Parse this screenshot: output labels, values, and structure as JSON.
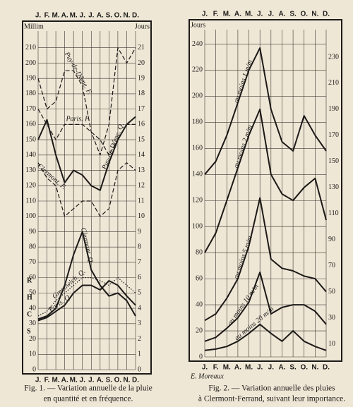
{
  "chart_data": [
    {
      "type": "line",
      "categories": [
        "J.",
        "F.",
        "M.",
        "A.",
        "M.",
        "J.",
        "J.",
        "A.",
        "S.",
        "O.",
        "N.",
        "D."
      ],
      "ylabel": "Millim",
      "y2label": "Jours",
      "ylim": [
        0,
        220
      ],
      "yticks": [
        0,
        10,
        20,
        30,
        40,
        50,
        60,
        70,
        80,
        90,
        100,
        110,
        120,
        130,
        140,
        150,
        160,
        170,
        180,
        190,
        200,
        210
      ],
      "y2lim": [
        0,
        22
      ],
      "y2ticks": [
        0,
        1,
        2,
        3,
        4,
        5,
        6,
        7,
        8,
        9,
        10,
        11,
        12,
        13,
        14,
        15,
        16,
        17,
        18,
        19,
        20,
        21
      ],
      "grid": true,
      "color": "#1c1a18",
      "series": [
        {
          "name": "Puy-de-Dôme. F.",
          "axis": "y2",
          "style": "dashed",
          "values": [
            19,
            17,
            17.5,
            19.5,
            19.5,
            18.5,
            15.5,
            14,
            16,
            21,
            20,
            21
          ]
        },
        {
          "name": "Paris. F.",
          "axis": "y2",
          "style": "dashed",
          "values": [
            17,
            16,
            15,
            16,
            16,
            16,
            15.5,
            15,
            14,
            15,
            16,
            16
          ]
        },
        {
          "name": "Clermont. F.",
          "axis": "y2",
          "style": "dashed",
          "values": [
            13.5,
            12.5,
            12,
            10,
            10.5,
            11,
            11,
            10,
            10.5,
            13,
            13.5,
            13
          ]
        },
        {
          "name": "Puy-de-Dôme. Q.",
          "style": "solid",
          "values": [
            150,
            163,
            140,
            122,
            130,
            127,
            120,
            117,
            135,
            150,
            160,
            165
          ]
        },
        {
          "name": "Clermont. Q.",
          "style": "solid",
          "values": [
            33,
            35,
            40,
            55,
            75,
            90,
            65,
            55,
            48,
            50,
            45,
            35
          ]
        },
        {
          "name": "Greenwich. Q.",
          "style": "dotted",
          "values": [
            35,
            38,
            45,
            50,
            55,
            60,
            60,
            58,
            55,
            60,
            55,
            50
          ]
        },
        {
          "name": "Paris. Q.",
          "style": "solid",
          "values": [
            32,
            34,
            38,
            42,
            50,
            55,
            55,
            52,
            58,
            55,
            48,
            42
          ]
        }
      ],
      "annotations": [
        "R",
        "H",
        "C",
        "S"
      ],
      "caption": [
        "Fig. 1. — Variation annuelle de la pluie",
        "en quantité et en fréquence."
      ]
    },
    {
      "type": "line",
      "categories": [
        "J.",
        "F.",
        "M.",
        "A.",
        "M.",
        "J.",
        "J.",
        "A.",
        "S.",
        "O.",
        "N.",
        "D."
      ],
      "ylabel": "Jours",
      "ylim": [
        0,
        250
      ],
      "yticks": [
        0,
        20,
        40,
        60,
        80,
        100,
        120,
        140,
        160,
        180,
        200,
        220,
        240
      ],
      "y2lim": [
        0,
        250
      ],
      "y2ticks": [
        10,
        30,
        50,
        70,
        90,
        110,
        130,
        150,
        170,
        190,
        210,
        230
      ],
      "grid": true,
      "color": "#1c1a18",
      "series": [
        {
          "name": "au moins 1 m/m",
          "style": "solid",
          "values": [
            140,
            150,
            170,
            195,
            220,
            237,
            190,
            165,
            158,
            185,
            170,
            158
          ]
        },
        {
          "name": "au moins 2 m/m",
          "style": "solid",
          "values": [
            80,
            95,
            120,
            145,
            170,
            190,
            140,
            125,
            120,
            130,
            137,
            105
          ]
        },
        {
          "name": "au moins 5 m/m",
          "style": "solid",
          "values": [
            28,
            33,
            45,
            60,
            85,
            122,
            75,
            68,
            66,
            62,
            60,
            50
          ]
        },
        {
          "name": "au moins 10 m/m",
          "style": "solid",
          "values": [
            12,
            15,
            22,
            30,
            42,
            65,
            33,
            38,
            40,
            40,
            35,
            25
          ]
        },
        {
          "name": "au moins 20 m/m",
          "style": "solid",
          "values": [
            5,
            6,
            8,
            12,
            18,
            25,
            18,
            12,
            20,
            12,
            8,
            5
          ]
        }
      ],
      "signature": "E. Moreaux",
      "caption": [
        "Fig. 2. — Variation annuelle des pluies",
        "à Clermont-Ferrand, suivant leur importance."
      ]
    }
  ]
}
